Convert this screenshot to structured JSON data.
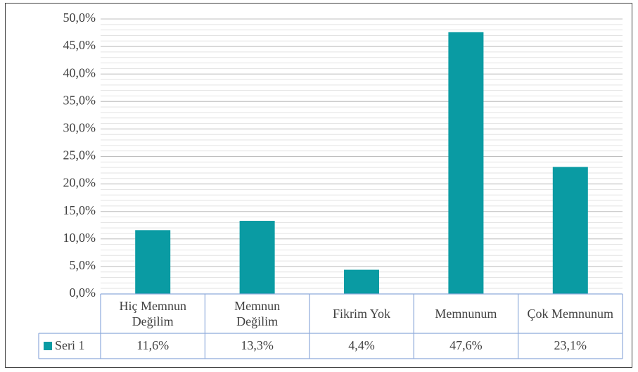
{
  "chart_data": {
    "type": "bar",
    "categories": [
      "Hiç Memnun Değilim",
      "Memnun Değilim",
      "Fikrim Yok",
      "Memnunum",
      "Çok Memnunum"
    ],
    "series": [
      {
        "name": "Seri 1",
        "color": "#0a9ba3",
        "values": [
          11.6,
          13.3,
          4.4,
          47.6,
          23.1
        ],
        "value_labels": [
          "11,6%",
          "13,3%",
          "4,4%",
          "47,6%",
          "23,1%"
        ]
      }
    ],
    "ylim": [
      0,
      50
    ],
    "yticks": [
      {
        "value": 0,
        "label": "0,0%"
      },
      {
        "value": 5,
        "label": "5,0%"
      },
      {
        "value": 10,
        "label": "10,0%"
      },
      {
        "value": 15,
        "label": "15,0%"
      },
      {
        "value": 20,
        "label": "20,0%"
      },
      {
        "value": 25,
        "label": "25,0%"
      },
      {
        "value": 30,
        "label": "30,0%"
      },
      {
        "value": 35,
        "label": "35,0%"
      },
      {
        "value": 40,
        "label": "40,0%"
      },
      {
        "value": 45,
        "label": "45,0%"
      },
      {
        "value": 50,
        "label": "50,0%"
      }
    ],
    "grid": true,
    "data_table": true
  }
}
